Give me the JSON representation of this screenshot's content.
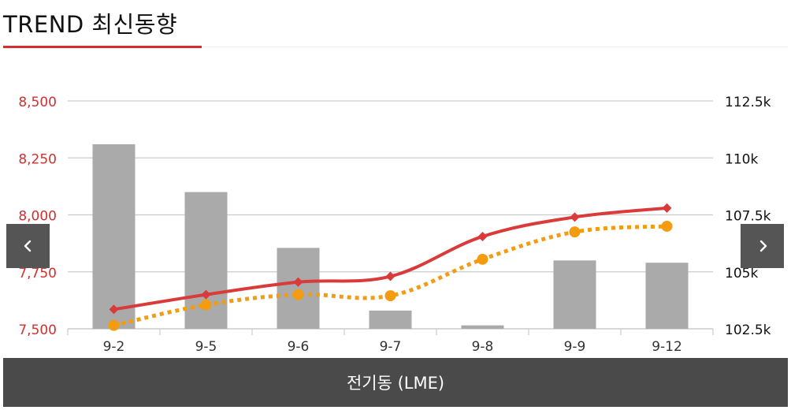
{
  "header": {
    "title": "TREND 최신동향"
  },
  "footer": {
    "label": "전기동 (LME)"
  },
  "colors": {
    "accent": "#d32f2f",
    "line_primary": "#d93a3a",
    "line_secondary": "#f39c12",
    "bars": "#aaaaaa",
    "grid": "#cccccc",
    "footer_bg": "#4a4a4a"
  },
  "icons": {
    "prev": "chevron-left-icon",
    "next": "chevron-right-icon"
  },
  "chart_data": {
    "type": "bar-line-combo",
    "categories": [
      "9-2",
      "9-5",
      "9-6",
      "9-7",
      "9-8",
      "9-9",
      "9-12"
    ],
    "left_axis": {
      "ylim": [
        7500,
        8500
      ],
      "ticks": [
        "7,500",
        "7,750",
        "8,000",
        "8,250",
        "8,500"
      ],
      "tick_values": [
        7500,
        7750,
        8000,
        8250,
        8500
      ]
    },
    "right_axis": {
      "ylim": [
        102500,
        112500
      ],
      "ticks": [
        "102.5k",
        "105k",
        "107.5k",
        "110k",
        "112.5k"
      ],
      "tick_values": [
        102500,
        105000,
        107500,
        110000,
        112500
      ]
    },
    "series": [
      {
        "type": "bar",
        "axis": "left",
        "values": [
          8310,
          8100,
          7855,
          7580,
          7515,
          7800,
          7790
        ]
      },
      {
        "type": "line",
        "axis": "left",
        "style": "solid",
        "marker": "diamond",
        "values": [
          7585,
          7650,
          7705,
          7730,
          7905,
          7990,
          8030
        ]
      },
      {
        "type": "line",
        "axis": "left",
        "style": "dotted",
        "marker": "circle",
        "values": [
          7515,
          7605,
          7650,
          7645,
          7805,
          7925,
          7950
        ]
      }
    ],
    "grid": true,
    "legend": "none"
  }
}
